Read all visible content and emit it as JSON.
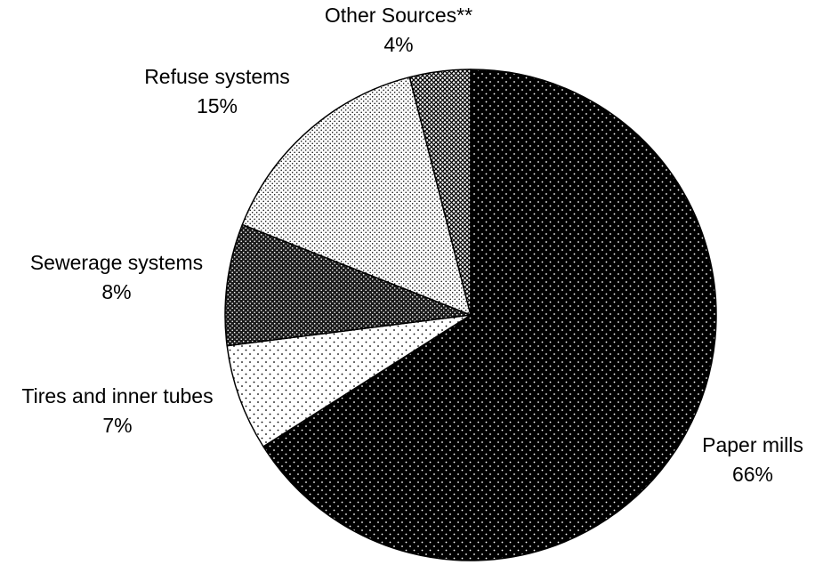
{
  "chart_data": {
    "type": "pie",
    "title": "",
    "slices": [
      {
        "label": "Paper mills",
        "value_label": "66%",
        "value": 66,
        "fill": "#000000",
        "dot": "#ffffff",
        "pattern": "dots-sparse-light"
      },
      {
        "label": "Tires and inner tubes",
        "value_label": "7%",
        "value": 7,
        "fill": "#ffffff",
        "dot": "#000000",
        "pattern": "dots-sparse-dark"
      },
      {
        "label": "Sewerage systems",
        "value_label": "8%",
        "value": 8,
        "fill": "#1a1a1a",
        "dot": "#ffffff",
        "pattern": "dots-dense-light"
      },
      {
        "label": "Refuse systems",
        "value_label": "15%",
        "value": 15,
        "fill": "#ffffff",
        "dot": "#000000",
        "pattern": "dots-dense-dark"
      },
      {
        "label": "Other Sources**",
        "value_label": "4%",
        "value": 4,
        "fill": "#9a9a9a",
        "dot": "#000000",
        "pattern": "crosshatch"
      }
    ],
    "start": "12 o'clock",
    "direction": "clockwise",
    "colors": {
      "outline": "#000000",
      "background": "#ffffff"
    }
  }
}
